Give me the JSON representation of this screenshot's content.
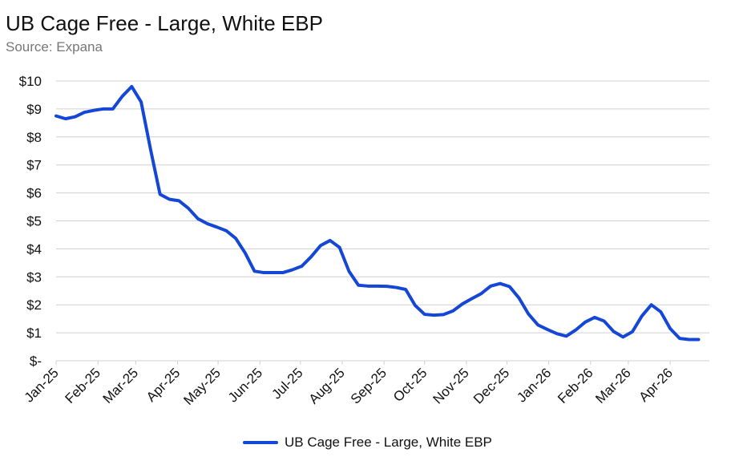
{
  "title": "UB Cage Free - Large, White EBP",
  "subtitle": "Source: Expana",
  "colors": {
    "series": "#1547d6",
    "grid": "#d0d0d0",
    "axis_text": "#111111"
  },
  "chart_data": {
    "type": "line",
    "title": "UB Cage Free - Large, White EBP",
    "subtitle": "Source: Expana",
    "xlabel": "",
    "ylabel": "",
    "ylim": [
      0,
      10
    ],
    "y_ticks": [
      {
        "value": 0,
        "label": "$-"
      },
      {
        "value": 1,
        "label": "$1"
      },
      {
        "value": 2,
        "label": "$2"
      },
      {
        "value": 3,
        "label": "$3"
      },
      {
        "value": 4,
        "label": "$4"
      },
      {
        "value": 5,
        "label": "$5"
      },
      {
        "value": 6,
        "label": "$6"
      },
      {
        "value": 7,
        "label": "$7"
      },
      {
        "value": 8,
        "label": "$8"
      },
      {
        "value": 9,
        "label": "$9"
      },
      {
        "value": 10,
        "label": "$10"
      }
    ],
    "x_tick_labels": [
      "Jan-25",
      "Feb-25",
      "Mar-25",
      "Apr-25",
      "May-25",
      "Jun-25",
      "Jul-25",
      "Aug-25",
      "Sep-25",
      "Oct-25",
      "Nov-25",
      "Dec-25",
      "Jan-26",
      "Feb-26",
      "Mar-26",
      "Apr-26"
    ],
    "grid": true,
    "legend_position": "bottom",
    "series": [
      {
        "name": "UB Cage Free - Large, White EBP",
        "x": [
          "2025-01-01",
          "2025-01-08",
          "2025-01-15",
          "2025-01-22",
          "2025-01-29",
          "2025-02-05",
          "2025-02-12",
          "2025-02-19",
          "2025-02-26",
          "2025-03-05",
          "2025-03-12",
          "2025-03-19",
          "2025-03-26",
          "2025-04-02",
          "2025-04-09",
          "2025-04-16",
          "2025-04-23",
          "2025-04-30",
          "2025-05-07",
          "2025-05-14",
          "2025-05-21",
          "2025-05-28",
          "2025-06-04",
          "2025-06-11",
          "2025-06-18",
          "2025-06-25",
          "2025-07-02",
          "2025-07-09",
          "2025-07-16",
          "2025-07-23",
          "2025-07-30",
          "2025-08-06",
          "2025-08-13",
          "2025-08-20",
          "2025-08-27",
          "2025-09-03",
          "2025-09-10",
          "2025-09-17",
          "2025-09-24",
          "2025-10-01",
          "2025-10-08",
          "2025-10-15",
          "2025-10-22",
          "2025-10-29",
          "2025-11-05",
          "2025-11-12",
          "2025-11-19",
          "2025-11-26",
          "2025-12-03",
          "2025-12-10",
          "2025-12-17",
          "2025-12-24",
          "2025-12-31",
          "2026-01-07",
          "2026-01-14",
          "2026-01-21",
          "2026-01-28",
          "2026-02-04",
          "2026-02-11",
          "2026-02-18",
          "2026-02-25",
          "2026-03-04",
          "2026-03-11",
          "2026-03-18",
          "2026-03-25",
          "2026-04-01",
          "2026-04-08",
          "2026-04-15",
          "2026-04-22"
        ],
        "values": [
          8.75,
          8.65,
          8.72,
          8.88,
          8.95,
          9.0,
          9.0,
          9.45,
          9.8,
          9.25,
          7.55,
          5.95,
          5.77,
          5.72,
          5.45,
          5.08,
          4.9,
          4.78,
          4.65,
          4.38,
          3.86,
          3.2,
          3.15,
          3.15,
          3.15,
          3.25,
          3.38,
          3.72,
          4.12,
          4.3,
          4.05,
          3.2,
          2.7,
          2.67,
          2.67,
          2.66,
          2.62,
          2.55,
          1.98,
          1.66,
          1.63,
          1.65,
          1.78,
          2.03,
          2.22,
          2.4,
          2.67,
          2.76,
          2.65,
          2.24,
          1.67,
          1.28,
          1.12,
          0.97,
          0.88,
          1.1,
          1.38,
          1.55,
          1.42,
          1.05,
          0.85,
          1.04,
          1.6,
          2.0,
          1.75,
          1.15,
          0.8,
          0.76,
          0.76
        ]
      }
    ]
  }
}
